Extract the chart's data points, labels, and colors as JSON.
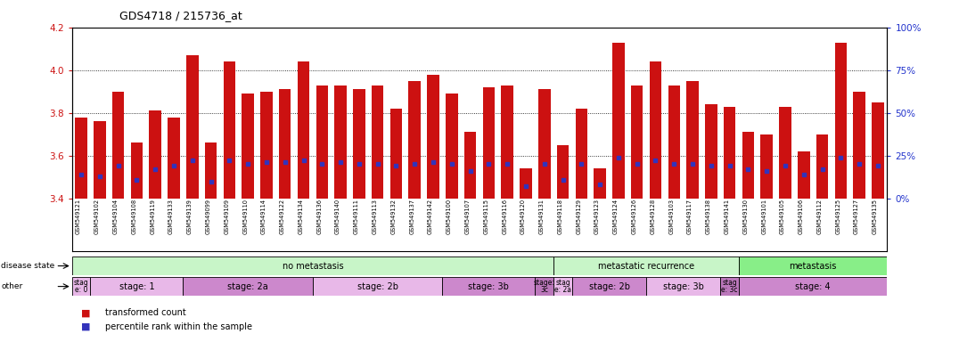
{
  "title": "GDS4718 / 215736_at",
  "samples": [
    "GSM549121",
    "GSM549102",
    "GSM549104",
    "GSM549108",
    "GSM549119",
    "GSM549133",
    "GSM549139",
    "GSM549099",
    "GSM549109",
    "GSM549110",
    "GSM549114",
    "GSM549122",
    "GSM549134",
    "GSM549136",
    "GSM549140",
    "GSM549111",
    "GSM549113",
    "GSM549132",
    "GSM549137",
    "GSM549142",
    "GSM549100",
    "GSM549107",
    "GSM549115",
    "GSM549116",
    "GSM549120",
    "GSM549131",
    "GSM549118",
    "GSM549129",
    "GSM549123",
    "GSM549124",
    "GSM549126",
    "GSM549128",
    "GSM549103",
    "GSM549117",
    "GSM549138",
    "GSM549141",
    "GSM549130",
    "GSM549101",
    "GSM549105",
    "GSM549106",
    "GSM549112",
    "GSM549125",
    "GSM549127",
    "GSM549135"
  ],
  "transformed_count": [
    3.78,
    3.76,
    3.9,
    3.66,
    3.81,
    3.78,
    4.07,
    3.66,
    4.04,
    3.89,
    3.9,
    3.91,
    4.04,
    3.93,
    3.93,
    3.91,
    3.93,
    3.82,
    3.95,
    3.98,
    3.89,
    3.71,
    3.92,
    3.93,
    3.54,
    3.91,
    3.65,
    3.82,
    3.54,
    4.13,
    3.93,
    4.04,
    3.93,
    3.95,
    3.84,
    3.83,
    3.71,
    3.7,
    3.83,
    3.62,
    3.7,
    4.13,
    3.9,
    3.85
  ],
  "percentile_pct": [
    14,
    13,
    19,
    11,
    17,
    19,
    22,
    10,
    22,
    20,
    21,
    21,
    22,
    20,
    21,
    20,
    20,
    19,
    20,
    21,
    20,
    16,
    20,
    20,
    7,
    20,
    11,
    20,
    8,
    24,
    20,
    22,
    20,
    20,
    19,
    19,
    17,
    16,
    19,
    14,
    17,
    24,
    20,
    19
  ],
  "bar_color": "#cc1111",
  "blue_color": "#3333bb",
  "ylim": [
    3.4,
    4.2
  ],
  "yticks": [
    3.4,
    3.6,
    3.8,
    4.0,
    4.2
  ],
  "right_ylim": [
    0,
    100
  ],
  "right_yticks": [
    0,
    25,
    50,
    75,
    100
  ],
  "disease_state_groups": [
    {
      "label": "no metastasis",
      "start": 0,
      "end": 26,
      "color": "#c8f5c8"
    },
    {
      "label": "metastatic recurrence",
      "start": 26,
      "end": 36,
      "color": "#c8f5c8"
    },
    {
      "label": "metastasis",
      "start": 36,
      "end": 44,
      "color": "#88ee88"
    }
  ],
  "stage_groups": [
    {
      "label": "stag\ne: 0",
      "start": 0,
      "end": 1
    },
    {
      "label": "stage: 1",
      "start": 1,
      "end": 6
    },
    {
      "label": "stage: 2a",
      "start": 6,
      "end": 13
    },
    {
      "label": "stage: 2b",
      "start": 13,
      "end": 20
    },
    {
      "label": "stage: 3b",
      "start": 20,
      "end": 25
    },
    {
      "label": "stage:\n3c",
      "start": 25,
      "end": 26
    },
    {
      "label": "stag\ne: 2a",
      "start": 26,
      "end": 27
    },
    {
      "label": "stage: 2b",
      "start": 27,
      "end": 31
    },
    {
      "label": "stage: 3b",
      "start": 31,
      "end": 35
    },
    {
      "label": "stag\ne: 3c",
      "start": 35,
      "end": 36
    },
    {
      "label": "stage: 4",
      "start": 36,
      "end": 44
    }
  ],
  "stage_colors": [
    "#e8b8e8",
    "#e8b8e8",
    "#cc88cc",
    "#e8b8e8",
    "#cc88cc",
    "#bb77bb",
    "#e8b8e8",
    "#cc88cc",
    "#e8b8e8",
    "#bb77bb",
    "#cc88cc"
  ],
  "legend_items": [
    {
      "label": "transformed count",
      "color": "#cc1111"
    },
    {
      "label": "percentile rank within the sample",
      "color": "#3333bb"
    }
  ],
  "left_label_color": "#cc1111",
  "right_label_color": "#2233cc",
  "bar_bottom": 3.4,
  "grid_lines": [
    3.6,
    3.8,
    4.0
  ]
}
